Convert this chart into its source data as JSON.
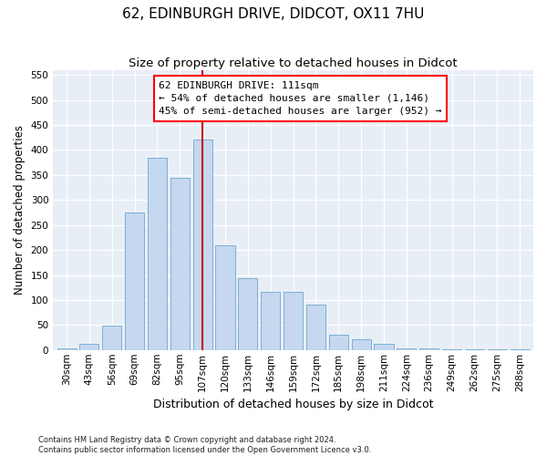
{
  "title": "62, EDINBURGH DRIVE, DIDCOT, OX11 7HU",
  "subtitle": "Size of property relative to detached houses in Didcot",
  "xlabel": "Distribution of detached houses by size in Didcot",
  "ylabel": "Number of detached properties",
  "categories": [
    "30sqm",
    "43sqm",
    "56sqm",
    "69sqm",
    "82sqm",
    "95sqm",
    "107sqm",
    "120sqm",
    "133sqm",
    "146sqm",
    "159sqm",
    "172sqm",
    "185sqm",
    "198sqm",
    "211sqm",
    "224sqm",
    "236sqm",
    "249sqm",
    "262sqm",
    "275sqm",
    "288sqm"
  ],
  "values": [
    3,
    12,
    48,
    275,
    385,
    345,
    420,
    210,
    143,
    117,
    117,
    90,
    30,
    22,
    12,
    3,
    3,
    2,
    1,
    1,
    2
  ],
  "bar_color": "#c5d8ef",
  "bar_edge_color": "#7aafd4",
  "bg_color": "#e8eef6",
  "vline_position": 6.0,
  "vline_color": "#cc0000",
  "annotation_line1": "62 EDINBURGH DRIVE: 111sqm",
  "annotation_line2": "← 54% of detached houses are smaller (1,146)",
  "annotation_line3": "45% of semi-detached houses are larger (952) →",
  "ylim_max": 560,
  "title_fontsize": 11,
  "subtitle_fontsize": 9.5,
  "ylabel_fontsize": 8.5,
  "xlabel_fontsize": 9,
  "tick_fontsize": 7.5,
  "ann_fontsize": 8,
  "footnote_line1": "Contains HM Land Registry data © Crown copyright and database right 2024.",
  "footnote_line2": "Contains public sector information licensed under the Open Government Licence v3.0."
}
